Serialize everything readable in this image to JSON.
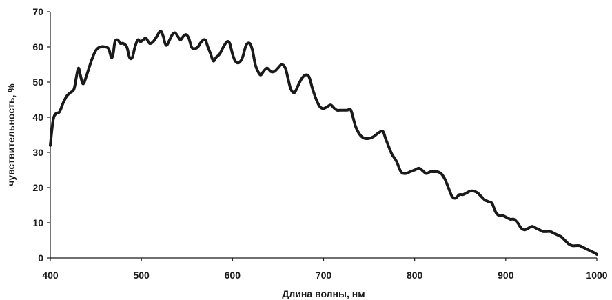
{
  "chart_data": {
    "type": "line",
    "xlabel": "Длина волны, нм",
    "ylabel": "чувствительность, %",
    "xlim": [
      400,
      1000
    ],
    "ylim": [
      0,
      70
    ],
    "x_ticks": [
      "400",
      "500",
      "600",
      "700",
      "800",
      "900",
      "1000"
    ],
    "y_ticks": [
      "0",
      "10",
      "20",
      "30",
      "40",
      "50",
      "60",
      "70"
    ],
    "grid": false,
    "legend": "none",
    "line_color": "#1a1a1a",
    "series": [
      {
        "x": [
          400,
          403,
          406,
          410,
          414,
          418,
          422,
          426,
          429,
          431,
          433,
          436,
          440,
          445,
          450,
          455,
          460,
          464,
          467,
          469,
          471,
          474,
          477,
          480,
          484,
          487,
          490,
          493,
          496,
          499,
          502,
          505,
          509,
          513,
          517,
          521,
          524,
          526,
          528,
          531,
          534,
          537,
          540,
          543,
          546,
          549,
          552,
          555,
          558,
          562,
          566,
          570,
          573,
          576,
          579,
          582,
          586,
          590,
          594,
          597,
          600,
          603,
          607,
          611,
          615,
          619,
          622,
          625,
          628,
          631,
          634,
          638,
          642,
          646,
          650,
          654,
          658,
          661,
          664,
          668,
          672,
          676,
          680,
          684,
          688,
          692,
          696,
          700,
          704,
          708,
          712,
          715,
          718,
          722,
          726,
          730,
          735,
          740,
          745,
          750,
          755,
          760,
          765,
          768,
          771,
          775,
          780,
          785,
          790,
          795,
          800,
          805,
          810,
          813,
          817,
          821,
          825,
          829,
          833,
          837,
          841,
          845,
          849,
          853,
          857,
          861,
          865,
          869,
          873,
          877,
          881,
          885,
          889,
          893,
          897,
          901,
          905,
          909,
          913,
          917,
          921,
          925,
          929,
          933,
          937,
          941,
          945,
          949,
          953,
          957,
          961,
          965,
          969,
          973,
          977,
          981,
          985,
          989,
          993,
          997,
          1000
        ],
        "y": [
          32,
          39,
          41,
          41.5,
          44,
          46,
          47,
          48,
          52,
          54,
          52,
          49.5,
          52,
          56,
          59,
          60,
          60,
          59.5,
          57,
          58,
          61.5,
          62,
          61,
          61,
          60,
          57,
          57,
          60,
          62,
          61.5,
          62,
          62.5,
          61,
          61.5,
          63,
          64.5,
          63,
          61,
          60.5,
          62,
          63.5,
          64,
          63,
          62,
          63,
          63.5,
          62.5,
          60,
          59.5,
          60,
          61.5,
          62,
          60,
          58,
          56,
          57,
          58,
          60,
          61.5,
          61,
          58,
          56,
          55.5,
          57,
          60.5,
          61,
          59,
          55,
          53,
          52,
          53,
          54,
          53,
          53,
          54,
          55,
          54,
          51,
          48,
          47,
          49,
          51,
          52,
          51.5,
          48,
          45,
          43,
          42.5,
          43,
          43.5,
          42.5,
          42,
          42,
          42,
          42,
          42,
          37.5,
          35,
          34,
          34,
          34.5,
          35.5,
          36,
          34,
          32,
          29.5,
          27.5,
          24.5,
          24,
          24.5,
          25,
          25.5,
          24.5,
          24,
          24.5,
          24.5,
          24.5,
          24,
          22.5,
          20,
          17.5,
          17,
          18,
          18,
          18.5,
          19,
          19,
          18.5,
          17.5,
          16.5,
          16,
          15.5,
          13,
          12,
          12,
          11.5,
          11,
          11,
          10,
          8.5,
          8,
          8.5,
          9,
          8.5,
          8,
          7.5,
          7.5,
          7.5,
          7,
          6.5,
          6,
          5,
          4,
          3.5,
          3.5,
          3.5,
          3,
          2.5,
          2,
          1.5,
          1
        ]
      }
    ]
  }
}
